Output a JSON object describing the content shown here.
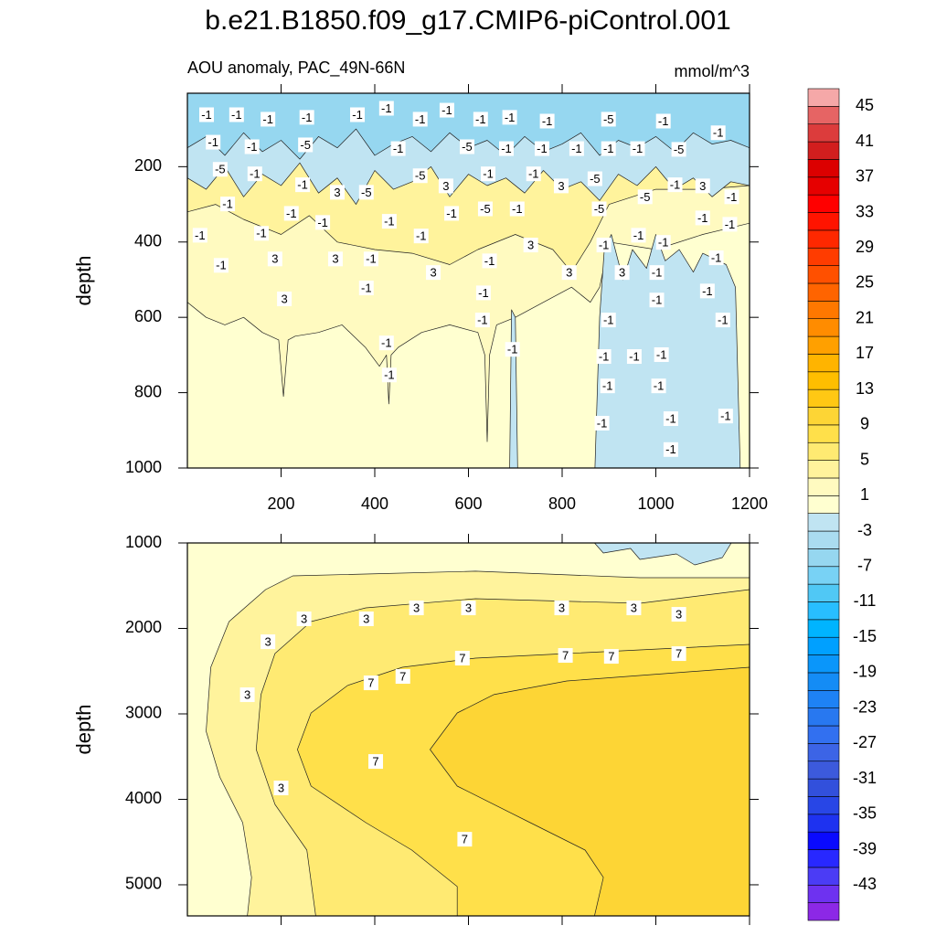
{
  "chart_data": [
    {
      "type": "contour",
      "title": "b.e21.B1850.f09_g17.CMIP6-piControl.001",
      "subtitle": "AOU anomaly, PAC_49N-66N",
      "units": "mmol/m^3",
      "y_label": "depth",
      "xlim": [
        0,
        1200
      ],
      "xticks": [
        200,
        400,
        600,
        800,
        1000,
        1200
      ],
      "x_tick_labels": true,
      "ylim": [
        5,
        1000
      ],
      "yticks": [
        200,
        400,
        600,
        800,
        1000
      ],
      "contours": [
        {
          "level": 1,
          "x": [
            0,
            40,
            80,
            120,
            160,
            195,
            205,
            215,
            230,
            280,
            330,
            380,
            410,
            425,
            430,
            435,
            450,
            500,
            560,
            620,
            635,
            640,
            645,
            660,
            700,
            760,
            820,
            860,
            880,
            900,
            1000,
            1100,
            1200,
            1200,
            0
          ],
          "y": [
            560,
            600,
            620,
            600,
            640,
            660,
            810,
            660,
            650,
            640,
            620,
            680,
            730,
            700,
            830,
            700,
            680,
            640,
            620,
            640,
            700,
            930,
            700,
            620,
            600,
            560,
            520,
            560,
            520,
            400,
            420,
            380,
            350,
            5,
            5
          ]
        },
        {
          "level": 3,
          "x": [
            0,
            60,
            120,
            200,
            260,
            320,
            400,
            480,
            560,
            620,
            700,
            780,
            820,
            860,
            900,
            1000,
            1100,
            1200,
            1200,
            0
          ],
          "y": [
            320,
            300,
            340,
            380,
            330,
            400,
            420,
            430,
            460,
            420,
            380,
            420,
            480,
            400,
            300,
            260,
            260,
            250,
            5,
            5
          ]
        },
        {
          "level": -1,
          "x": [
            870,
            875,
            880,
            890,
            905,
            930,
            950,
            980,
            1000,
            1020,
            1050,
            1080,
            1100,
            1150,
            1170,
            1180
          ],
          "y": [
            1000,
            800,
            600,
            420,
            380,
            500,
            420,
            470,
            380,
            450,
            420,
            480,
            430,
            460,
            520,
            1000
          ]
        },
        {
          "level": -1,
          "x": [
            688,
            692,
            700,
            705
          ],
          "y": [
            1000,
            580,
            600,
            1000
          ]
        },
        {
          "level": -1,
          "x": [
            0,
            40,
            80,
            120,
            160,
            200,
            240,
            280,
            320,
            360,
            400,
            440,
            480,
            520,
            560,
            600,
            640,
            680,
            720,
            760,
            800,
            840,
            880,
            920,
            960,
            1000,
            1040,
            1080,
            1120,
            1160,
            1200,
            1200,
            0
          ],
          "y": [
            230,
            260,
            200,
            280,
            220,
            250,
            190,
            270,
            230,
            300,
            210,
            260,
            240,
            200,
            280,
            220,
            250,
            230,
            270,
            210,
            260,
            240,
            290,
            220,
            250,
            200,
            260,
            230,
            280,
            240,
            250,
            5,
            5
          ]
        },
        {
          "level": -5,
          "x": [
            0,
            40,
            80,
            120,
            160,
            200,
            240,
            280,
            320,
            360,
            400,
            440,
            480,
            520,
            560,
            600,
            640,
            680,
            720,
            760,
            800,
            840,
            880,
            920,
            960,
            1000,
            1040,
            1080,
            1120,
            1160,
            1200,
            1200,
            0
          ],
          "y": [
            150,
            120,
            170,
            110,
            160,
            130,
            180,
            120,
            150,
            100,
            170,
            140,
            120,
            160,
            110,
            150,
            130,
            170,
            120,
            160,
            140,
            110,
            170,
            130,
            150,
            120,
            160,
            110,
            140,
            130,
            150,
            5,
            5
          ]
        }
      ],
      "label_x": [
        41,
        105,
        172,
        255,
        363,
        425,
        497,
        554,
        626,
        688,
        768,
        899,
        1016,
        1133,
        55,
        138,
        252,
        450,
        597,
        681,
        757,
        831,
        899,
        961,
        1049,
        70,
        144,
        497,
        642,
        739,
        870,
        246,
        798,
        1041,
        1100,
        86,
        320,
        382,
        552,
        636,
        704,
        879,
        977,
        1162,
        222,
        289,
        564,
        431,
        1100,
        1158,
        27,
        158,
        499,
        733,
        889,
        963,
        1016,
        72,
        187,
        316,
        392,
        645,
        1129,
        525,
        815,
        928,
        1002,
        382,
        632,
        1110,
        207,
        1002,
        630,
        899,
        1143,
        425,
        694,
        889,
        954,
        1012,
        431,
        897,
        1006,
        885,
        1032,
        1149,
        1032
      ],
      "label_y": [
        62,
        62,
        74,
        69,
        62,
        45,
        74,
        50,
        74,
        69,
        79,
        74,
        79,
        110,
        135,
        147,
        142,
        152,
        147,
        152,
        152,
        152,
        152,
        152,
        154,
        207,
        219,
        224,
        219,
        219,
        232,
        248,
        251,
        248,
        251,
        299,
        268,
        268,
        251,
        312,
        312,
        312,
        280,
        280,
        324,
        348,
        324,
        345,
        336,
        353,
        382,
        377,
        384,
        408,
        408,
        382,
        401,
        462,
        445,
        445,
        445,
        450,
        442,
        481,
        481,
        481,
        481,
        522,
        535,
        530,
        551,
        554,
        607,
        607,
        607,
        668,
        685,
        704,
        704,
        699,
        753,
        782,
        782,
        881,
        869,
        862,
        951
      ],
      "label_values": [
        -1,
        -1,
        -1,
        -1,
        -1,
        -1,
        -1,
        -1,
        -1,
        -1,
        -1,
        -5,
        -1,
        -1,
        -1,
        -1,
        -5,
        -1,
        -5,
        -1,
        -1,
        -1,
        -1,
        -1,
        -5,
        -5,
        -1,
        -5,
        -1,
        -1,
        -5,
        -1,
        3,
        -1,
        3,
        -1,
        3,
        -5,
        3,
        -5,
        -1,
        -5,
        -5,
        -1,
        -1,
        -1,
        -1,
        -1,
        -1,
        -1,
        -1,
        -1,
        -1,
        3,
        -1,
        -1,
        -1,
        -1,
        3,
        3,
        -1,
        -1,
        -1,
        3,
        3,
        3,
        -1,
        -1,
        -1,
        -1,
        3,
        -1,
        -1,
        -1,
        -1,
        -1,
        -1,
        -1,
        -1,
        -1,
        -1,
        -1,
        -1,
        -1,
        -1,
        -1,
        -1
      ],
      "colorbar": {
        "levels": [
          -45,
          -43,
          -41,
          -39,
          -37,
          -35,
          -33,
          -31,
          -29,
          -27,
          -25,
          -23,
          -21,
          -19,
          -17,
          -15,
          -13,
          -11,
          -9,
          -7,
          -5,
          -3,
          -1,
          1,
          3,
          5,
          7,
          9,
          11,
          13,
          15,
          17,
          19,
          21,
          23,
          25,
          27,
          29,
          31,
          33,
          35,
          37,
          39,
          41,
          43,
          45
        ],
        "colors": [
          "#8c28e6",
          "#6e32f0",
          "#4b3cf5",
          "#2828ff",
          "#0a0aff",
          "#1e32f0",
          "#2846e6",
          "#3250dc",
          "#3c5adc",
          "#3c64e6",
          "#3270f0",
          "#2878f0",
          "#1e82f5",
          "#148cf5",
          "#0a96fa",
          "#00a0ff",
          "#00b4ff",
          "#28beff",
          "#50c8f5",
          "#78d2f5",
          "#96d7f0",
          "#aadcf0",
          "#c0e4f2",
          "#ffffd0",
          "#fffac0",
          "#fff39c",
          "#ffea72",
          "#ffe04a",
          "#fdd535",
          "#ffc814",
          "#ffbe00",
          "#ffb400",
          "#ffa000",
          "#ff8c00",
          "#ff7800",
          "#ff6400",
          "#ff5000",
          "#ff3c00",
          "#ff2800",
          "#ff1400",
          "#ff0000",
          "#e60000",
          "#dc0000",
          "#d21e1e",
          "#dc3c3c",
          "#e66464",
          "#f5a8a8"
        ],
        "ticks": [
          45,
          41,
          37,
          33,
          29,
          25,
          21,
          17,
          13,
          9,
          5,
          1,
          -3,
          -7,
          -11,
          -15,
          -19,
          -23,
          -27,
          -31,
          -35,
          -39,
          -43
        ]
      }
    },
    {
      "type": "contour",
      "y_label": "depth",
      "xlim": [
        0,
        1200
      ],
      "xticks": [
        200,
        400,
        600,
        800,
        1000,
        1200
      ],
      "x_tick_labels": false,
      "ylim": [
        1000,
        5364
      ],
      "yticks": [
        1000,
        2000,
        3000,
        4000,
        5000
      ],
      "contours": [
        {
          "level": 3,
          "x": [
            1200,
            966,
            615,
            381,
            225,
            167,
            89,
            50,
            40,
            69,
            118,
            137,
            128,
            1200
          ],
          "y": [
            1406,
            1406,
            1331,
            1364,
            1385,
            1545,
            1920,
            2455,
            3203,
            3738,
            4273,
            4914,
            5364,
            5364
          ]
        },
        {
          "level": 5,
          "x": [
            1200,
            966,
            615,
            381,
            264,
            187,
            157,
            147,
            187,
            255,
            274,
            1200
          ],
          "y": [
            1545,
            1706,
            1652,
            1759,
            1920,
            2294,
            2775,
            3417,
            4059,
            4594,
            5364,
            5364
          ]
        },
        {
          "level": 7,
          "x": [
            1200,
            810,
            615,
            459,
            342,
            264,
            235,
            264,
            381,
            479,
            576,
            576,
            1200
          ],
          "y": [
            2187,
            2294,
            2348,
            2455,
            2668,
            2989,
            3417,
            3845,
            4273,
            4594,
            5021,
            5364,
            5364
          ]
        },
        {
          "level": 9,
          "x": [
            1200,
            810,
            654,
            576,
            518,
            576,
            732,
            849,
            888,
            869,
            1200
          ],
          "y": [
            2455,
            2615,
            2775,
            2989,
            3417,
            3845,
            4273,
            4594,
            4914,
            5364,
            5364
          ]
        },
        {
          "level": -1,
          "x": [
            869,
            888,
            946,
            966,
            1044,
            1083,
            1142,
            1161
          ],
          "y": [
            1000,
            1118,
            1064,
            1193,
            1128,
            1257,
            1171,
            1000
          ]
        }
      ],
      "label_x": [
        172,
        249,
        382,
        489,
        600,
        799,
        953,
        1049,
        128,
        200,
        392,
        460,
        587,
        807,
        905,
        1049,
        402,
        592
      ],
      "label_y": [
        2156,
        1888,
        1888,
        1760,
        1760,
        1760,
        1760,
        1835,
        2776,
        3867,
        2637,
        2562,
        2348,
        2316,
        2327,
        2295,
        3557,
        4467
      ],
      "label_values": [
        3,
        3,
        3,
        3,
        3,
        3,
        3,
        3,
        3,
        3,
        7,
        7,
        7,
        7,
        7,
        7,
        7,
        7
      ]
    }
  ]
}
